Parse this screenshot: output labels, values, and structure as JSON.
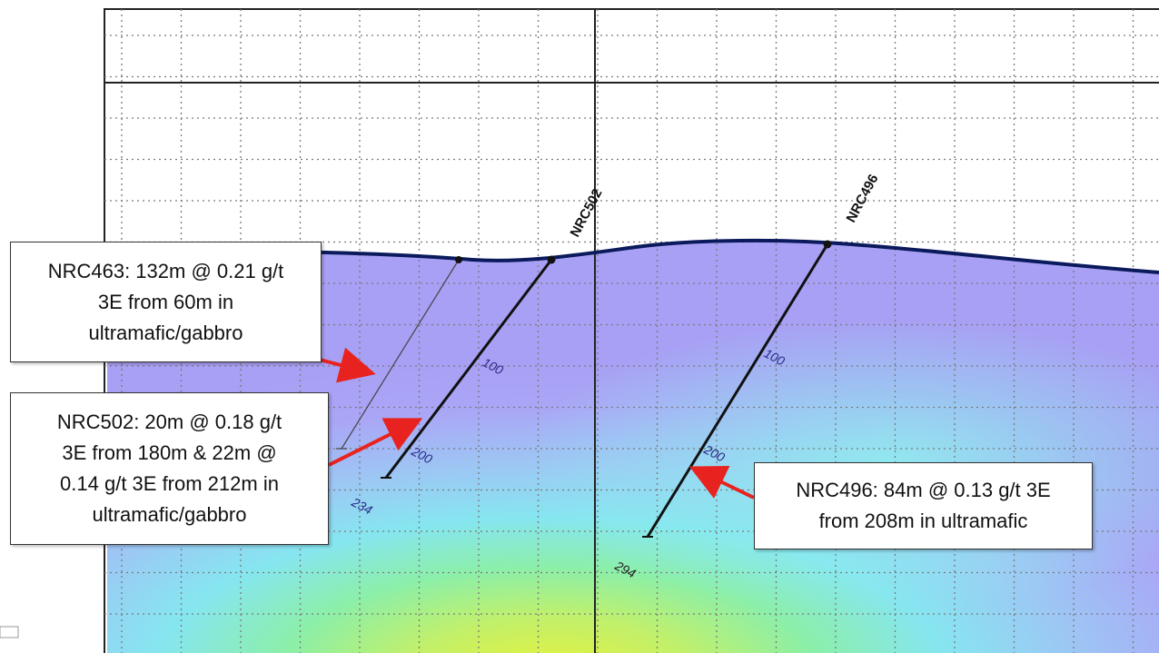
{
  "holes": [
    {
      "id": "nrc463",
      "name": "",
      "depth_labels": [],
      "end_label": ""
    },
    {
      "id": "nrc502",
      "name": "NRC502",
      "depth_labels": [
        "100",
        "200"
      ],
      "end_label": "234"
    },
    {
      "id": "nrc496",
      "name": "NRC496",
      "depth_labels": [
        "100",
        "200"
      ],
      "end_label": "294"
    }
  ],
  "callouts": {
    "nrc463": {
      "lines": [
        "NRC463: 132m @ 0.21 g/t",
        "3E from 60m in",
        "ultramafic/gabbro"
      ]
    },
    "nrc502": {
      "lines": [
        "NRC502: 20m @ 0.18 g/t",
        "3E from 180m & 22m @",
        "0.14 g/t 3E from 212m in",
        "ultramafic/gabbro"
      ]
    },
    "nrc496": {
      "lines": [
        "NRC496: 84m @ 0.13 g/t 3E",
        "from 208m in ultramafic"
      ]
    }
  },
  "colors": {
    "surface": "#0b1a5c",
    "drill_trace": "#111111",
    "arrow": "#e8231f",
    "depth_label_blue": "#2a2a8a",
    "grade_low": "#a9a3f7",
    "grade_mid": "#8fe6f2",
    "grade_high": "#d8f06a"
  }
}
